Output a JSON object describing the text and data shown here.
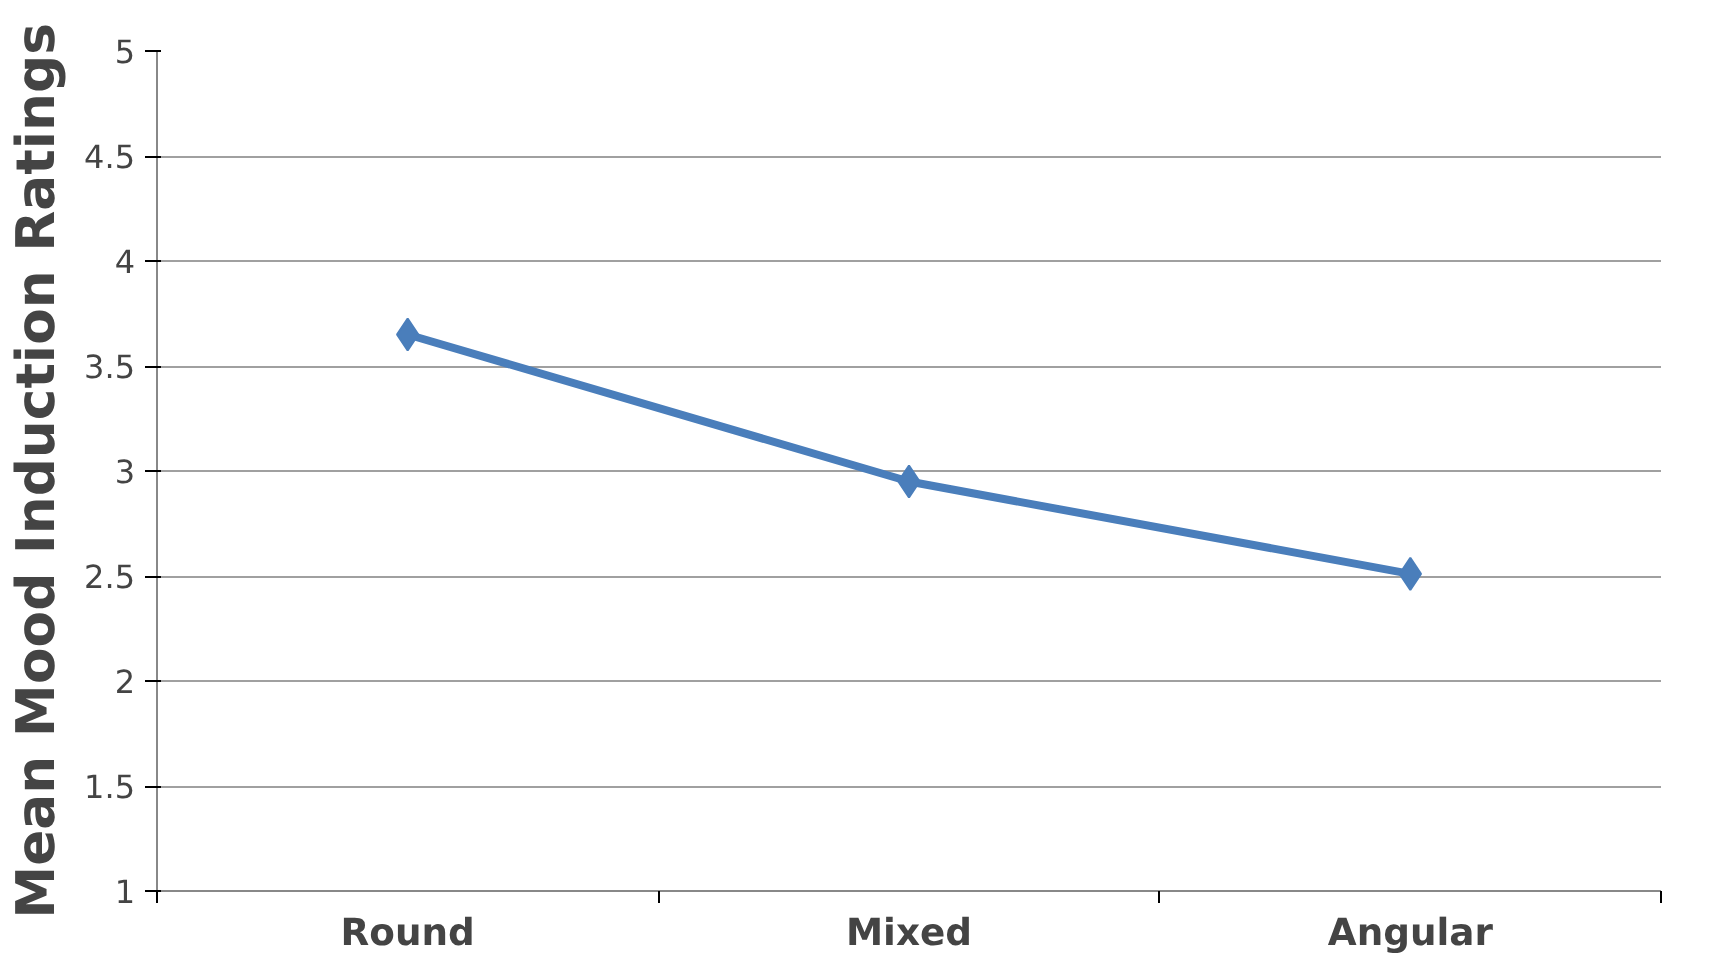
{
  "chart_data": {
    "type": "line",
    "ylabel": "Mean Mood Induction Ratings",
    "categories": [
      "Round",
      "Mixed",
      "Angular"
    ],
    "series": [
      {
        "color": "#4a7ebb",
        "values": [
          3.65,
          2.95,
          2.51
        ]
      }
    ],
    "ylim": [
      1,
      5
    ],
    "yticks": [
      1,
      1.5,
      2,
      2.5,
      3,
      3.5,
      4,
      4.5,
      5
    ],
    "grid": "y",
    "marker": "diamond",
    "line_style": "solid"
  }
}
